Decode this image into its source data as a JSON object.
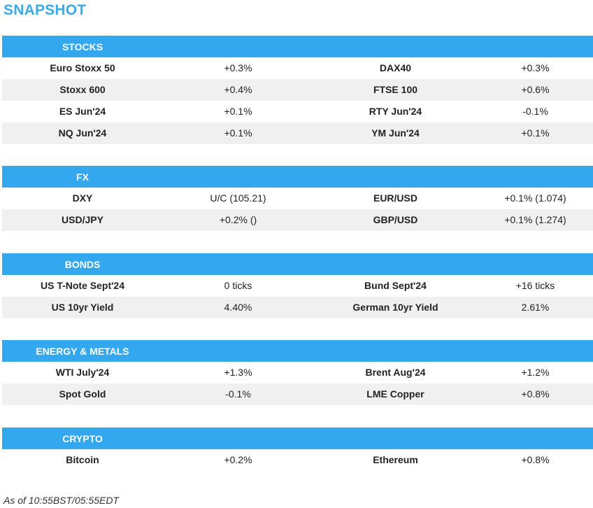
{
  "title": "SNAPSHOT",
  "sections": [
    {
      "label": "STOCKS",
      "rows": [
        [
          "Euro Stoxx 50",
          "+0.3%",
          "DAX40",
          "+0.3%"
        ],
        [
          "Stoxx 600",
          "+0.4%",
          "FTSE 100",
          "+0.6%"
        ],
        [
          "ES Jun'24",
          "+0.1%",
          "RTY Jun'24",
          "-0.1%"
        ],
        [
          "NQ Jun'24",
          "+0.1%",
          "YM Jun'24",
          "+0.1%"
        ]
      ]
    },
    {
      "label": "FX",
      "rows": [
        [
          "DXY",
          "U/C (105.21)",
          "EUR/USD",
          "+0.1% (1.074)"
        ],
        [
          "USD/JPY",
          "+0.2% ()",
          "GBP/USD",
          "+0.1% (1.274)"
        ]
      ]
    },
    {
      "label": "BONDS",
      "rows": [
        [
          "US T-Note Sept'24",
          "0 ticks",
          "Bund Sept'24",
          "+16 ticks"
        ],
        [
          "US 10yr Yield",
          "4.40%",
          "German 10yr Yield",
          "2.61%"
        ]
      ]
    },
    {
      "label": "ENERGY & METALS",
      "rows": [
        [
          "WTI July'24",
          "+1.3%",
          "Brent Aug'24",
          "+1.2%"
        ],
        [
          "Spot Gold",
          "-0.1%",
          "LME Copper",
          "+0.8%"
        ]
      ]
    },
    {
      "label": "CRYPTO",
      "rows": [
        [
          "Bitcoin",
          "+0.2%",
          "Ethereum",
          "+0.8%"
        ]
      ]
    }
  ],
  "footer": "As of 10:55BST/05:55EDT",
  "colors": {
    "accent": "#34a8ee",
    "title": "#3daaea",
    "row_shade": "#f0f0f0"
  }
}
